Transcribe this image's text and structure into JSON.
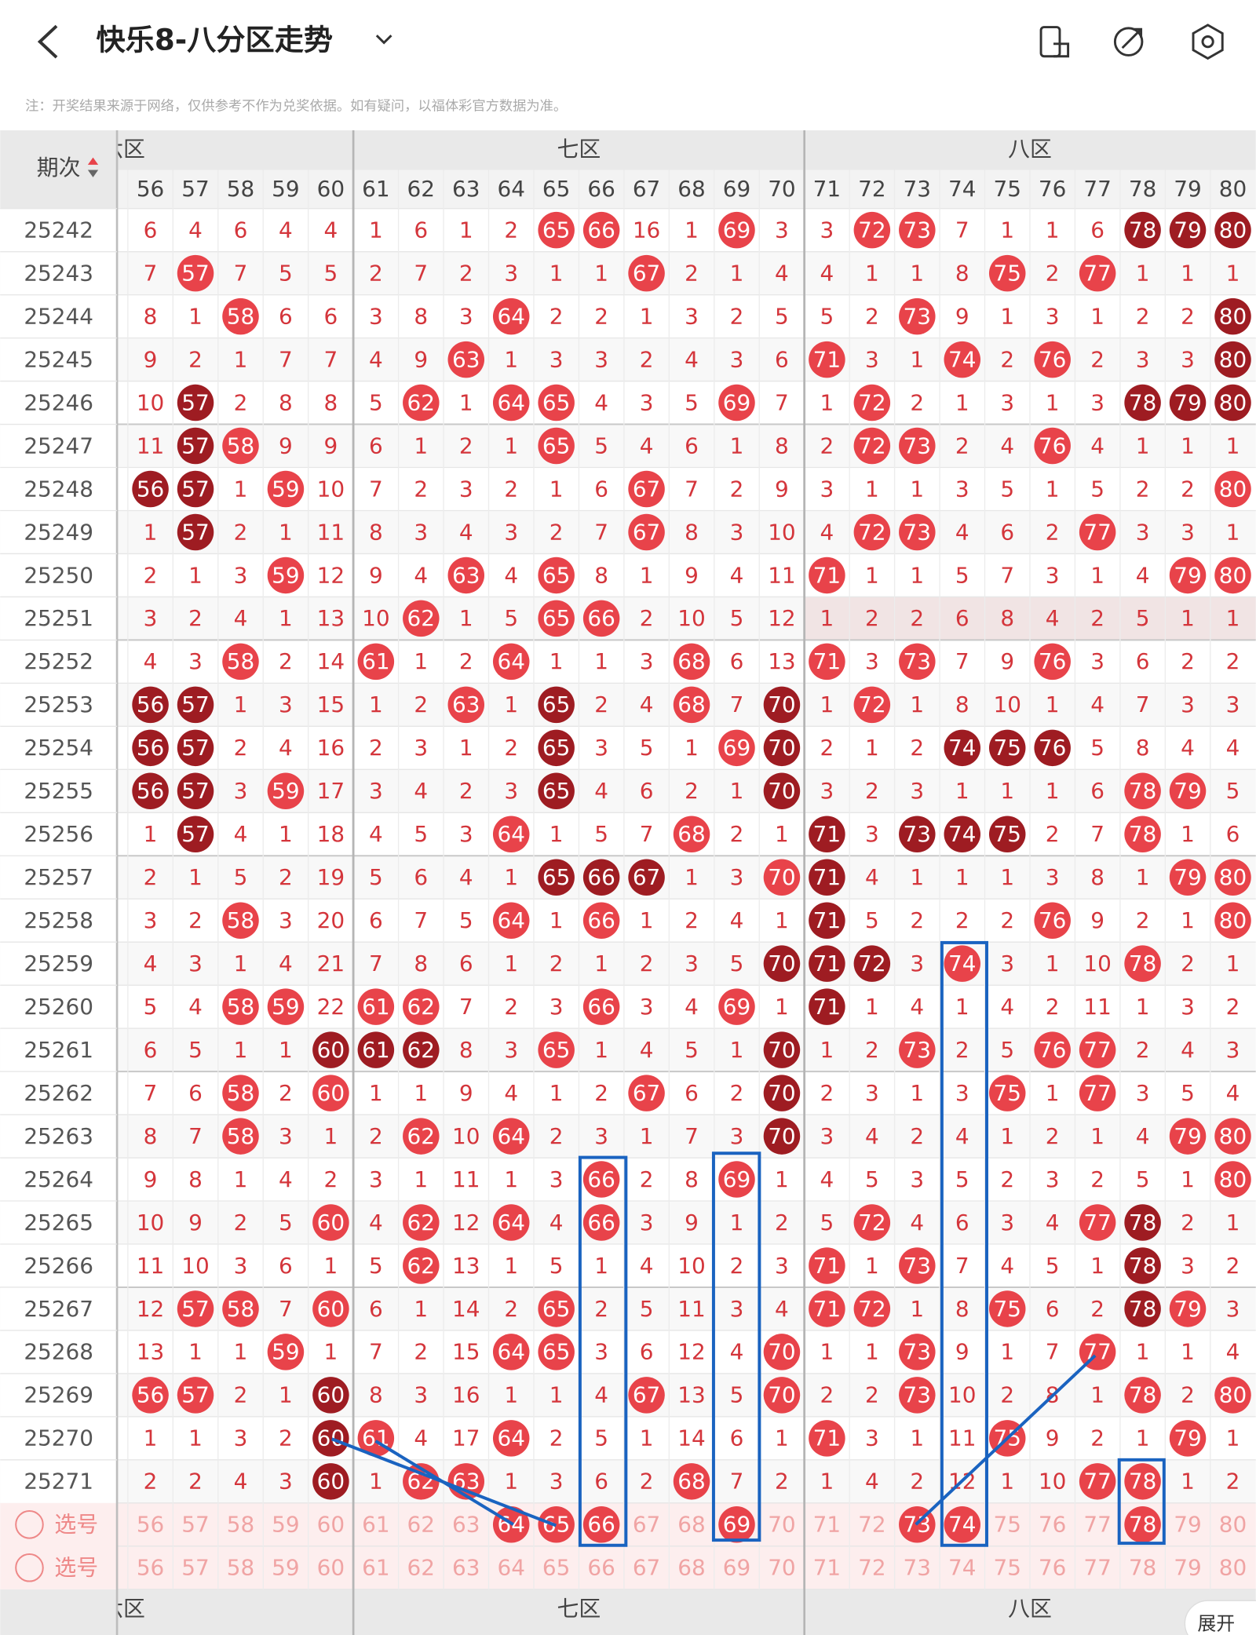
{
  "header": {
    "title": "快乐8-八分区走势"
  },
  "note": "注：开奖结果来源于网络，仅供参考不作为兑奖依据。如有疑问，以福体彩官方数据为准。",
  "table": {
    "period_header": "期次",
    "zones": [
      "六区",
      "七区",
      "八区"
    ],
    "columns": [
      56,
      57,
      58,
      59,
      60,
      61,
      62,
      63,
      64,
      65,
      66,
      67,
      68,
      69,
      70,
      71,
      72,
      73,
      74,
      75,
      76,
      77,
      78,
      79,
      80
    ],
    "rows": [
      {
        "period": "25242",
        "cells": [
          6,
          4,
          6,
          4,
          4,
          1,
          6,
          1,
          2,
          65,
          66,
          16,
          1,
          69,
          3,
          3,
          72,
          73,
          7,
          1,
          1,
          6,
          78,
          79,
          80
        ],
        "dark": "......................xxx"
      },
      {
        "period": "25243",
        "cells": [
          7,
          57,
          7,
          5,
          5,
          2,
          7,
          2,
          3,
          1,
          1,
          67,
          2,
          1,
          4,
          4,
          1,
          1,
          8,
          75,
          2,
          77,
          1,
          1,
          1
        ],
        "dark": "........................."
      },
      {
        "period": "25244",
        "cells": [
          8,
          1,
          58,
          6,
          6,
          3,
          8,
          3,
          64,
          2,
          2,
          1,
          3,
          2,
          5,
          5,
          2,
          73,
          9,
          1,
          3,
          1,
          2,
          2,
          80
        ],
        "dark": "........................x"
      },
      {
        "period": "25245",
        "cells": [
          9,
          2,
          1,
          7,
          7,
          4,
          9,
          63,
          1,
          3,
          3,
          2,
          4,
          3,
          6,
          71,
          3,
          1,
          74,
          2,
          76,
          2,
          3,
          3,
          80
        ],
        "dark": "........................x"
      },
      {
        "period": "25246",
        "cells": [
          10,
          57,
          2,
          8,
          8,
          5,
          62,
          1,
          64,
          65,
          4,
          3,
          5,
          69,
          7,
          1,
          72,
          2,
          1,
          3,
          1,
          3,
          78,
          79,
          80
        ],
        "dark": ".x....................xxx"
      },
      {
        "period": "25247",
        "cells": [
          11,
          57,
          58,
          9,
          9,
          6,
          1,
          2,
          1,
          65,
          5,
          4,
          6,
          1,
          8,
          2,
          72,
          73,
          2,
          4,
          76,
          4,
          1,
          1,
          1
        ],
        "dark": ".x......................."
      },
      {
        "period": "25248",
        "cells": [
          56,
          57,
          1,
          59,
          10,
          7,
          2,
          3,
          2,
          1,
          6,
          67,
          7,
          2,
          9,
          3,
          1,
          1,
          3,
          5,
          1,
          5,
          2,
          2,
          80
        ],
        "dark": "xx......................."
      },
      {
        "period": "25249",
        "cells": [
          1,
          57,
          2,
          1,
          11,
          8,
          3,
          4,
          3,
          2,
          7,
          67,
          8,
          3,
          10,
          4,
          72,
          73,
          4,
          6,
          2,
          77,
          3,
          3,
          1
        ],
        "dark": ".x......................."
      },
      {
        "period": "25250",
        "cells": [
          2,
          1,
          3,
          59,
          12,
          9,
          4,
          63,
          4,
          65,
          8,
          1,
          9,
          4,
          11,
          71,
          1,
          1,
          5,
          7,
          3,
          1,
          4,
          79,
          80
        ],
        "dark": "........................."
      },
      {
        "period": "25251",
        "cells": [
          3,
          2,
          4,
          1,
          13,
          10,
          62,
          1,
          5,
          65,
          66,
          2,
          10,
          5,
          12,
          1,
          2,
          2,
          6,
          8,
          4,
          2,
          5,
          1,
          1
        ],
        "dark": "........................."
      },
      {
        "period": "25252",
        "cells": [
          4,
          3,
          58,
          2,
          14,
          61,
          1,
          2,
          64,
          1,
          1,
          3,
          68,
          6,
          13,
          71,
          3,
          73,
          7,
          9,
          76,
          3,
          6,
          2,
          2
        ],
        "dark": "........................."
      },
      {
        "period": "25253",
        "cells": [
          56,
          57,
          1,
          3,
          15,
          1,
          2,
          63,
          1,
          65,
          2,
          4,
          68,
          7,
          70,
          1,
          72,
          1,
          8,
          10,
          1,
          4,
          7,
          3,
          3
        ],
        "dark": "xx.......x....x.........."
      },
      {
        "period": "25254",
        "cells": [
          56,
          57,
          2,
          4,
          16,
          2,
          3,
          1,
          2,
          65,
          3,
          5,
          1,
          69,
          70,
          2,
          1,
          2,
          74,
          75,
          76,
          5,
          8,
          4,
          4
        ],
        "dark": "xx.......x....x...xxx...."
      },
      {
        "period": "25255",
        "cells": [
          56,
          57,
          3,
          59,
          17,
          3,
          4,
          2,
          3,
          65,
          4,
          6,
          2,
          1,
          70,
          3,
          2,
          3,
          1,
          1,
          1,
          6,
          78,
          79,
          5
        ],
        "dark": "xx.......x....x.........."
      },
      {
        "period": "25256",
        "cells": [
          1,
          57,
          4,
          1,
          18,
          4,
          5,
          3,
          64,
          1,
          5,
          7,
          68,
          2,
          1,
          71,
          3,
          73,
          74,
          75,
          2,
          7,
          78,
          1,
          6
        ],
        "dark": ".x.............x.xxx....."
      },
      {
        "period": "25257",
        "cells": [
          2,
          1,
          5,
          2,
          19,
          5,
          6,
          4,
          1,
          65,
          66,
          67,
          1,
          3,
          70,
          71,
          4,
          1,
          1,
          1,
          3,
          8,
          1,
          79,
          80
        ],
        "dark": ".........xxx...x........."
      },
      {
        "period": "25258",
        "cells": [
          3,
          2,
          58,
          3,
          20,
          6,
          7,
          5,
          64,
          1,
          66,
          1,
          2,
          4,
          1,
          71,
          5,
          2,
          2,
          2,
          76,
          9,
          2,
          1,
          80
        ],
        "dark": "...............x........."
      },
      {
        "period": "25259",
        "cells": [
          4,
          3,
          1,
          4,
          21,
          7,
          8,
          6,
          1,
          2,
          1,
          2,
          3,
          5,
          70,
          71,
          72,
          3,
          74,
          3,
          1,
          10,
          78,
          2,
          1
        ],
        "dark": "..............xxx........"
      },
      {
        "period": "25260",
        "cells": [
          5,
          4,
          58,
          59,
          22,
          61,
          62,
          7,
          2,
          3,
          66,
          3,
          4,
          69,
          1,
          71,
          1,
          4,
          1,
          4,
          2,
          11,
          1,
          3,
          2
        ],
        "dark": "...............x........."
      },
      {
        "period": "25261",
        "cells": [
          6,
          5,
          1,
          1,
          60,
          61,
          62,
          8,
          3,
          65,
          1,
          4,
          5,
          1,
          70,
          1,
          2,
          73,
          2,
          5,
          76,
          77,
          2,
          4,
          3
        ],
        "dark": "....xxx.......x.........."
      },
      {
        "period": "25262",
        "cells": [
          7,
          6,
          58,
          2,
          60,
          1,
          1,
          9,
          4,
          1,
          2,
          67,
          6,
          2,
          70,
          2,
          3,
          1,
          3,
          75,
          1,
          77,
          3,
          5,
          4
        ],
        "dark": "..............x.........."
      },
      {
        "period": "25263",
        "cells": [
          8,
          7,
          58,
          3,
          1,
          2,
          62,
          10,
          64,
          2,
          3,
          1,
          7,
          3,
          70,
          3,
          4,
          2,
          4,
          1,
          2,
          1,
          4,
          79,
          80
        ],
        "dark": "..............x.........."
      },
      {
        "period": "25264",
        "cells": [
          9,
          8,
          1,
          4,
          2,
          3,
          1,
          11,
          1,
          3,
          66,
          2,
          8,
          69,
          1,
          4,
          5,
          3,
          5,
          2,
          3,
          2,
          5,
          1,
          80
        ],
        "dark": "........................."
      },
      {
        "period": "25265",
        "cells": [
          10,
          9,
          2,
          5,
          60,
          4,
          62,
          12,
          64,
          4,
          66,
          3,
          9,
          1,
          2,
          5,
          72,
          4,
          6,
          3,
          4,
          77,
          78,
          2,
          1
        ],
        "dark": "......................x.."
      },
      {
        "period": "25266",
        "cells": [
          11,
          10,
          3,
          6,
          1,
          5,
          62,
          13,
          1,
          5,
          1,
          4,
          10,
          2,
          3,
          71,
          1,
          73,
          7,
          4,
          5,
          1,
          78,
          3,
          2
        ],
        "dark": "......................x.."
      },
      {
        "period": "25267",
        "cells": [
          12,
          57,
          58,
          7,
          60,
          6,
          1,
          14,
          2,
          65,
          2,
          5,
          11,
          3,
          4,
          71,
          72,
          1,
          8,
          75,
          6,
          2,
          78,
          79,
          3
        ],
        "dark": "......................x.."
      },
      {
        "period": "25268",
        "cells": [
          13,
          1,
          1,
          59,
          1,
          7,
          2,
          15,
          64,
          65,
          3,
          6,
          12,
          4,
          70,
          1,
          1,
          73,
          9,
          1,
          7,
          77,
          1,
          1,
          4
        ],
        "dark": "........................."
      },
      {
        "period": "25269",
        "cells": [
          56,
          57,
          2,
          1,
          60,
          8,
          3,
          16,
          1,
          1,
          4,
          67,
          13,
          5,
          70,
          2,
          2,
          73,
          10,
          2,
          8,
          1,
          78,
          2,
          80
        ],
        "dark": "....x...................."
      },
      {
        "period": "25270",
        "cells": [
          1,
          1,
          3,
          2,
          60,
          61,
          4,
          17,
          64,
          2,
          5,
          1,
          14,
          6,
          1,
          71,
          3,
          1,
          11,
          75,
          9,
          2,
          1,
          79,
          1
        ],
        "dark": "....x...................."
      },
      {
        "period": "25271",
        "cells": [
          2,
          2,
          4,
          3,
          60,
          1,
          62,
          63,
          1,
          3,
          6,
          2,
          68,
          7,
          2,
          1,
          4,
          2,
          12,
          1,
          10,
          77,
          78,
          1,
          2
        ],
        "dark": "....x...................."
      }
    ],
    "pick_rows": [
      {
        "label": "选号",
        "selected": "........xxx..x...xx...x.."
      },
      {
        "label": "选号",
        "selected": "........................."
      }
    ]
  },
  "expand_button": "展开"
}
